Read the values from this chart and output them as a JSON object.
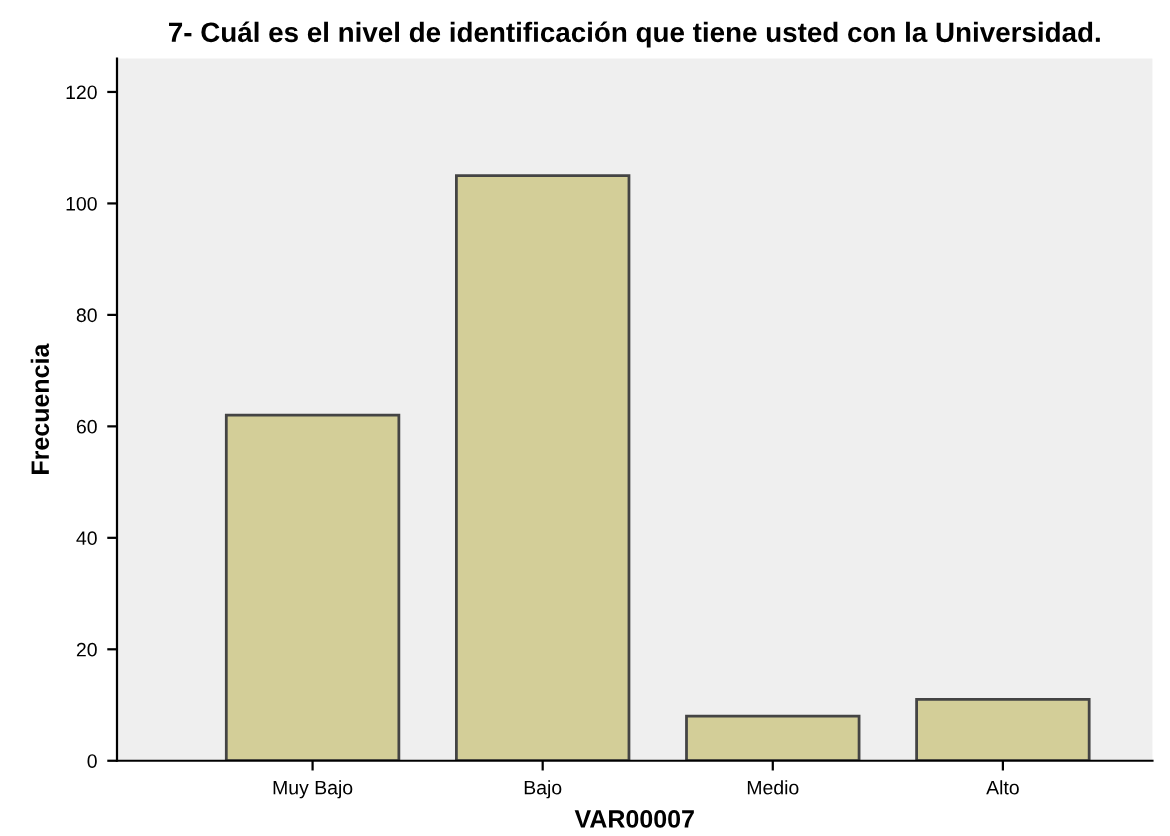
{
  "chart_data": {
    "type": "bar",
    "title": "7- Cuál es el nivel de identificación que tiene usted con la Universidad.",
    "xlabel": "VAR00007",
    "ylabel": "Frecuencia",
    "categories": [
      "Muy Bajo",
      "Bajo",
      "Medio",
      "Alto"
    ],
    "values": [
      62,
      105,
      8,
      11
    ],
    "color": "#d3ce98",
    "ylim": [
      0,
      126
    ],
    "yticks": [
      0,
      20,
      40,
      60,
      80,
      100,
      120
    ],
    "grid": false
  }
}
